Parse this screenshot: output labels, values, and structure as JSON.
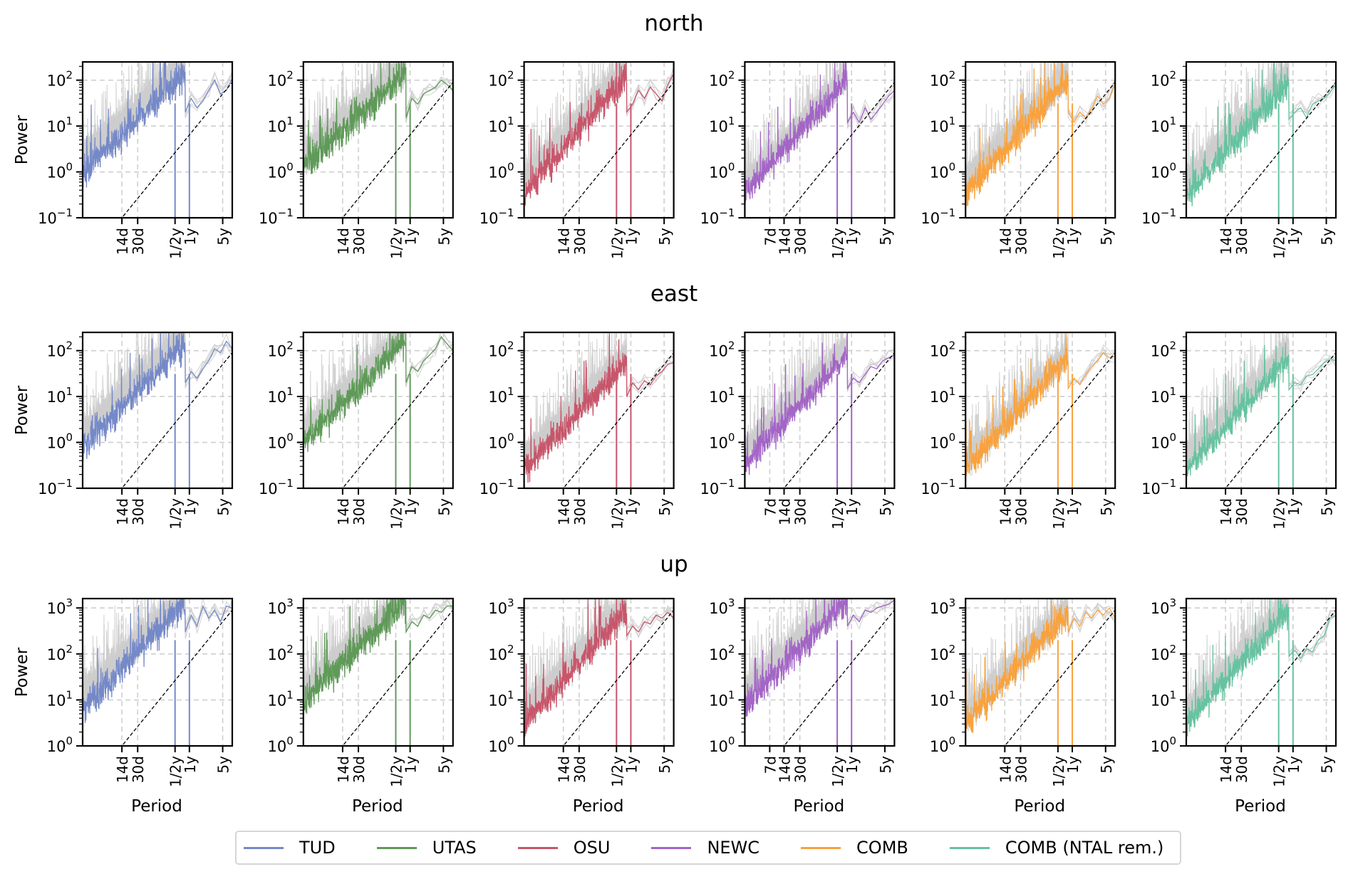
{
  "chart_data": {
    "type": "line",
    "title": "",
    "xlabel": "Period",
    "ylabel": "Power",
    "xscale": "log (period, days)",
    "yscale": "log",
    "grid": true,
    "legend_placement": "bottom-center",
    "reference_line": "dashed black power-law line (slope 1 in log-log)",
    "background_series_color": "#cccccc",
    "series": [
      {
        "name": "TUD",
        "color": "#7589c8"
      },
      {
        "name": "UTAS",
        "color": "#5f9a58"
      },
      {
        "name": "OSU",
        "color": "#c8566b"
      },
      {
        "name": "NEWC",
        "color": "#a365c6"
      },
      {
        "name": "COMB",
        "color": "#f9a23d"
      },
      {
        "name": "COMB (NTAL rem.)",
        "color": "#66c3a0"
      }
    ],
    "rows": [
      {
        "title": "north",
        "ylim": [
          0.1,
          250
        ],
        "yticks": [
          -1,
          0,
          1,
          2
        ],
        "reference_line": {
          "y_at_14d": 0.1,
          "y_at_5y": 50
        },
        "panels": [
          {
            "series": "TUD",
            "base": 1.0,
            "slope": 1.0,
            "spread": 0.35,
            "extra_xticks": [],
            "annual_notches": true,
            "tail": [
              20,
              40,
              25,
              35,
              60,
              100,
              50,
              60,
              110
            ]
          },
          {
            "series": "UTAS",
            "base": 1.3,
            "slope": 0.95,
            "spread": 0.35,
            "extra_xticks": [],
            "annual_notches": true,
            "tail": [
              15,
              40,
              30,
              50,
              60,
              70,
              100,
              80,
              60
            ]
          },
          {
            "series": "OSU",
            "base": 0.35,
            "slope": 1.2,
            "spread": 0.35,
            "extra_xticks": [],
            "annual_notches": true,
            "tail": [
              20,
              30,
              60,
              40,
              70,
              50,
              35,
              80,
              140
            ]
          },
          {
            "series": "NEWC",
            "base": 0.35,
            "slope": 1.15,
            "spread": 0.3,
            "extra_xticks": [
              "7d"
            ],
            "annual_notches": true,
            "tail": [
              12,
              20,
              12,
              25,
              14,
              20,
              30,
              45,
              60
            ]
          },
          {
            "series": "COMB",
            "base": 0.35,
            "slope": 1.15,
            "spread": 0.33,
            "extra_xticks": [],
            "annual_notches": true,
            "tail": [
              20,
              12,
              20,
              15,
              25,
              45,
              30,
              40,
              85
            ]
          },
          {
            "series": "COMB (NTAL rem.)",
            "base": 0.3,
            "slope": 1.15,
            "spread": 0.33,
            "extra_xticks": [],
            "annual_notches": true,
            "tail": [
              14,
              20,
              25,
              15,
              30,
              35,
              40,
              55,
              80
            ]
          }
        ]
      },
      {
        "title": "east",
        "ylim": [
          0.1,
          250
        ],
        "yticks": [
          -1,
          0,
          1,
          2
        ],
        "reference_line": {
          "y_at_14d": 0.1,
          "y_at_5y": 50
        },
        "panels": [
          {
            "series": "TUD",
            "base": 0.8,
            "slope": 1.05,
            "spread": 0.33,
            "extra_xticks": [],
            "annual_notches": true,
            "tail": [
              20,
              35,
              25,
              40,
              60,
              110,
              90,
              160,
              110
            ]
          },
          {
            "series": "UTAS",
            "base": 1.0,
            "slope": 1.05,
            "spread": 0.33,
            "extra_xticks": [],
            "annual_notches": true,
            "tail": [
              20,
              45,
              35,
              60,
              80,
              110,
              200,
              140,
              100
            ]
          },
          {
            "series": "OSU",
            "base": 0.25,
            "slope": 1.1,
            "spread": 0.3,
            "extra_xticks": [],
            "annual_notches": true,
            "tail": [
              10,
              20,
              14,
              22,
              18,
              28,
              35,
              50,
              55
            ]
          },
          {
            "series": "NEWC",
            "base": 0.35,
            "slope": 1.1,
            "spread": 0.3,
            "extra_xticks": [
              "7d"
            ],
            "annual_notches": true,
            "tail": [
              15,
              25,
              20,
              30,
              45,
              40,
              60,
              70,
              80
            ]
          },
          {
            "series": "COMB",
            "base": 0.25,
            "slope": 1.15,
            "spread": 0.3,
            "extra_xticks": [],
            "annual_notches": true,
            "tail": [
              15,
              25,
              18,
              30,
              45,
              60,
              90,
              70,
              75
            ]
          },
          {
            "series": "COMB (NTAL rem.)",
            "base": 0.25,
            "slope": 1.15,
            "spread": 0.3,
            "extra_xticks": [],
            "annual_notches": true,
            "tail": [
              14,
              20,
              18,
              28,
              30,
              40,
              55,
              65,
              60
            ]
          }
        ]
      },
      {
        "title": "up",
        "ylim": [
          1,
          1600
        ],
        "yticks": [
          0,
          1,
          2,
          3
        ],
        "reference_line": {
          "y_at_14d": 1,
          "y_at_5y": 500
        },
        "panels": [
          {
            "series": "TUD",
            "base": 7,
            "slope": 1.05,
            "spread": 0.35,
            "extra_xticks": [],
            "annual_notches": true,
            "tail": [
              300,
              700,
              400,
              1100,
              600,
              900,
              500,
              1100,
              1000
            ]
          },
          {
            "series": "UTAS",
            "base": 10,
            "slope": 1.0,
            "spread": 0.35,
            "extra_xticks": [],
            "annual_notches": true,
            "tail": [
              300,
              500,
              400,
              700,
              600,
              900,
              800,
              1100,
              1100
            ]
          },
          {
            "series": "OSU",
            "base": 3,
            "slope": 1.15,
            "spread": 0.33,
            "extra_xticks": [],
            "annual_notches": true,
            "tail": [
              250,
              400,
              300,
              500,
              450,
              700,
              600,
              800,
              600
            ]
          },
          {
            "series": "NEWC",
            "base": 8,
            "slope": 1.05,
            "spread": 0.33,
            "extra_xticks": [
              "7d"
            ],
            "annual_notches": true,
            "tail": [
              400,
              700,
              500,
              900,
              800,
              1000,
              1100,
              1200,
              1500
            ]
          },
          {
            "series": "COMB",
            "base": 3,
            "slope": 1.15,
            "spread": 0.33,
            "extra_xticks": [],
            "annual_notches": true,
            "tail": [
              300,
              600,
              400,
              800,
              600,
              900,
              700,
              1000,
              600
            ]
          },
          {
            "series": "COMB (NTAL rem.)",
            "base": 3,
            "slope": 1.15,
            "spread": 0.3,
            "extra_xticks": [],
            "annual_notches": true,
            "tail": [
              90,
              120,
              80,
              130,
              110,
              200,
              250,
              600,
              700
            ]
          }
        ]
      }
    ],
    "xtick_labels": [
      "14d",
      "30d",
      "1/2y",
      "1y",
      "5y"
    ],
    "xtick_periods_days": {
      "7d": 7,
      "14d": 14,
      "30d": 30,
      "1/2y": 182.6,
      "1y": 365.25,
      "5y": 1826
    },
    "xlim_days": [
      2.1,
      2900
    ],
    "ytick_label_base": "10"
  },
  "legend": {
    "items": [
      {
        "label": "TUD",
        "color": "#7589c8"
      },
      {
        "label": "UTAS",
        "color": "#5f9a58"
      },
      {
        "label": "OSU",
        "color": "#c8566b"
      },
      {
        "label": "NEWC",
        "color": "#a365c6"
      },
      {
        "label": "COMB",
        "color": "#f9a23d"
      },
      {
        "label": "COMB (NTAL rem.)",
        "color": "#66c3a0"
      }
    ]
  }
}
